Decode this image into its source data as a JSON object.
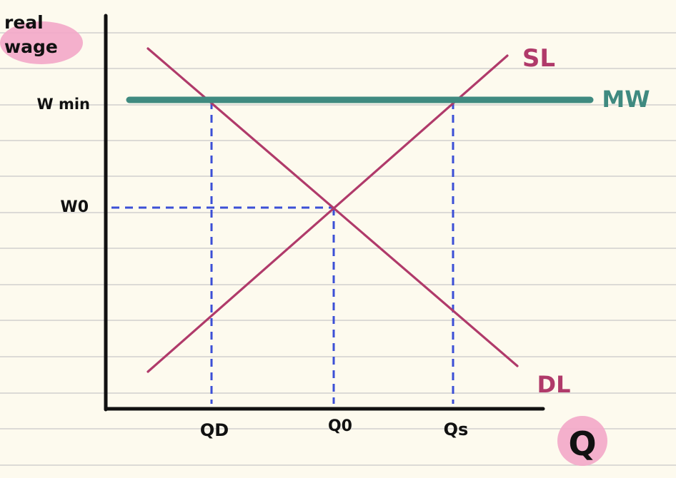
{
  "axes": {
    "y_label": "real wage",
    "x_label": "Q"
  },
  "y_ticks": {
    "wmin": "W min",
    "w0": "W0"
  },
  "x_ticks": {
    "qd": "QD",
    "q0": "Q0",
    "qs": "Qs"
  },
  "curves": {
    "supply": "SL",
    "demand": "DL",
    "min_wage": "MW"
  },
  "colors": {
    "background": "#fdfaee",
    "ruled_line": "#c8c8c8",
    "axis": "#111111",
    "curve": "#b03a6a",
    "min_wage": "#3f8a80",
    "dashed": "#3b4fd6",
    "highlight": "#f3a7c8"
  }
}
